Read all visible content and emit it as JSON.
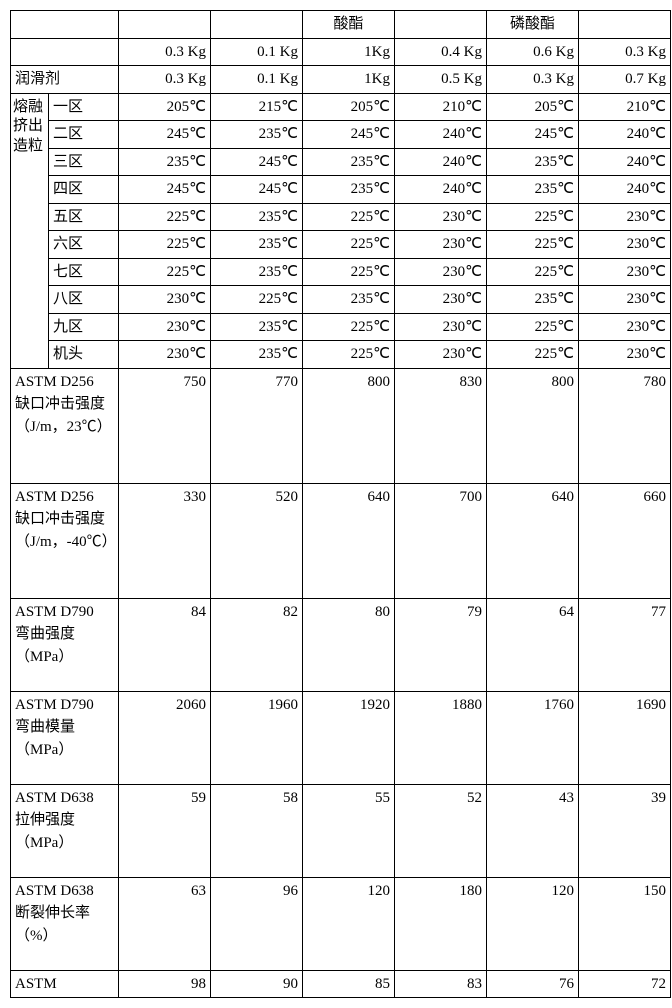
{
  "header_blank": [
    "",
    "",
    "",
    "酸酯",
    "",
    "磷酸酯",
    ""
  ],
  "row_kg1": [
    "",
    "0.3 Kg",
    "0.1 Kg",
    "1Kg",
    "0.4 Kg",
    "0.6 Kg",
    "0.3 Kg"
  ],
  "row_lubricant_label": "润滑剂",
  "row_kg2": [
    "0.3 Kg",
    "0.1 Kg",
    "1Kg",
    "0.5 Kg",
    "0.3 Kg",
    "0.7 Kg"
  ],
  "zones_label": "熔融挤出造粒",
  "zones": [
    {
      "name": "一区",
      "v": [
        "205℃",
        "215℃",
        "205℃",
        "210℃",
        "205℃",
        "210℃"
      ]
    },
    {
      "name": "二区",
      "v": [
        "245℃",
        "235℃",
        "245℃",
        "240℃",
        "245℃",
        "240℃"
      ]
    },
    {
      "name": "三区",
      "v": [
        "235℃",
        "245℃",
        "235℃",
        "240℃",
        "235℃",
        "240℃"
      ]
    },
    {
      "name": "四区",
      "v": [
        "245℃",
        "245℃",
        "235℃",
        "240℃",
        "235℃",
        "240℃"
      ]
    },
    {
      "name": "五区",
      "v": [
        "225℃",
        "235℃",
        "225℃",
        "230℃",
        "225℃",
        "230℃"
      ]
    },
    {
      "name": "六区",
      "v": [
        "225℃",
        "235℃",
        "225℃",
        "230℃",
        "225℃",
        "230℃"
      ]
    },
    {
      "name": "七区",
      "v": [
        "225℃",
        "235℃",
        "225℃",
        "230℃",
        "225℃",
        "230℃"
      ]
    },
    {
      "name": "八区",
      "v": [
        "230℃",
        "225℃",
        "235℃",
        "230℃",
        "235℃",
        "230℃"
      ]
    },
    {
      "name": "九区",
      "v": [
        "230℃",
        "235℃",
        "225℃",
        "230℃",
        "225℃",
        "230℃"
      ]
    },
    {
      "name": "机头",
      "v": [
        "230℃",
        "235℃",
        "225℃",
        "230℃",
        "225℃",
        "230℃"
      ]
    }
  ],
  "tests": [
    {
      "label": "ASTM D256　缺口冲击强度（J/m，23℃）",
      "v": [
        "750",
        "770",
        "800",
        "830",
        "800",
        "780"
      ]
    },
    {
      "label": "ASTM D256　缺口冲击强度（J/m，-40℃）",
      "v": [
        "330",
        "520",
        "640",
        "700",
        "640",
        "660"
      ]
    },
    {
      "label": "ASTM D790　弯曲强度（MPa）",
      "v": [
        "84",
        "82",
        "80",
        "79",
        "64",
        "77"
      ]
    },
    {
      "label": "ASTM D790　弯曲模量（MPa）",
      "v": [
        "2060",
        "1960",
        "1920",
        "1880",
        "1760",
        "1690"
      ]
    },
    {
      "label": "ASTM D638　拉伸强度（MPa）",
      "v": [
        "59",
        "58",
        "55",
        "52",
        "43",
        "39"
      ]
    },
    {
      "label": "ASTM D638　断裂伸长率（%）",
      "v": [
        "63",
        "96",
        "120",
        "180",
        "120",
        "150"
      ]
    },
    {
      "label": "ASTM",
      "v": [
        "98",
        "90",
        "85",
        "83",
        "76",
        "72"
      ]
    }
  ],
  "test_row_heights": [
    110,
    110,
    88,
    88,
    88,
    88,
    22
  ]
}
